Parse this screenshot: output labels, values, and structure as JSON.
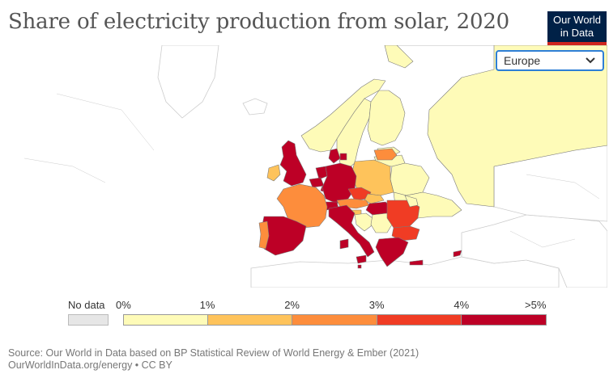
{
  "title": "Share of electricity production from solar, 2020",
  "logo": {
    "line1": "Our World",
    "line2": "in Data"
  },
  "region_selector": {
    "value": "Europe"
  },
  "legend": {
    "no_data_label": "No data",
    "no_data_color": "#e6e6e6",
    "ticks": [
      "0%",
      "1%",
      "2%",
      "3%",
      "4%",
      ">5%"
    ],
    "bins": [
      {
        "from": 0,
        "to": 1,
        "color": "#fefbb8"
      },
      {
        "from": 1,
        "to": 2,
        "color": "#fec35b"
      },
      {
        "from": 2,
        "to": 3,
        "color": "#fd8d3c"
      },
      {
        "from": 3,
        "to": 4,
        "color": "#f03c24"
      },
      {
        "from": 4,
        "to": 5,
        "color": "#bd0026"
      }
    ]
  },
  "countries": [
    {
      "name": "Russia",
      "bin": 0
    },
    {
      "name": "Norway",
      "bin": 0
    },
    {
      "name": "Sweden",
      "bin": 0
    },
    {
      "name": "Finland",
      "bin": 0
    },
    {
      "name": "Estonia",
      "bin": 0
    },
    {
      "name": "Latvia",
      "bin": 0
    },
    {
      "name": "Lithuania",
      "bin": 2
    },
    {
      "name": "Belarus",
      "bin": 0
    },
    {
      "name": "Ukraine",
      "bin": 0
    },
    {
      "name": "Poland",
      "bin": 1
    },
    {
      "name": "Denmark",
      "bin": 4
    },
    {
      "name": "United Kingdom",
      "bin": 4
    },
    {
      "name": "Ireland",
      "bin": 1
    },
    {
      "name": "Netherlands",
      "bin": 4
    },
    {
      "name": "Belgium",
      "bin": 4
    },
    {
      "name": "Luxembourg",
      "bin": 4
    },
    {
      "name": "Germany",
      "bin": 4
    },
    {
      "name": "Czechia",
      "bin": 3
    },
    {
      "name": "Slovakia",
      "bin": 1
    },
    {
      "name": "Austria",
      "bin": 2
    },
    {
      "name": "Switzerland",
      "bin": 4
    },
    {
      "name": "Hungary",
      "bin": 4
    },
    {
      "name": "Slovenia",
      "bin": 1
    },
    {
      "name": "Croatia",
      "bin": 0
    },
    {
      "name": "Serbia",
      "bin": 0
    },
    {
      "name": "Romania",
      "bin": 3
    },
    {
      "name": "Moldova",
      "bin": 0
    },
    {
      "name": "Bulgaria",
      "bin": 3
    },
    {
      "name": "Greece",
      "bin": 4
    },
    {
      "name": "France",
      "bin": 2
    },
    {
      "name": "Spain",
      "bin": 4
    },
    {
      "name": "Portugal",
      "bin": 2
    },
    {
      "name": "Italy",
      "bin": 4
    },
    {
      "name": "Cyprus",
      "bin": 4
    },
    {
      "name": "Malta",
      "bin": 4
    }
  ],
  "source": {
    "line1": "Source: Our World in Data based on BP Statistical Review of World Energy & Ember (2021)",
    "line2": "OurWorldInData.org/energy • CC BY"
  }
}
